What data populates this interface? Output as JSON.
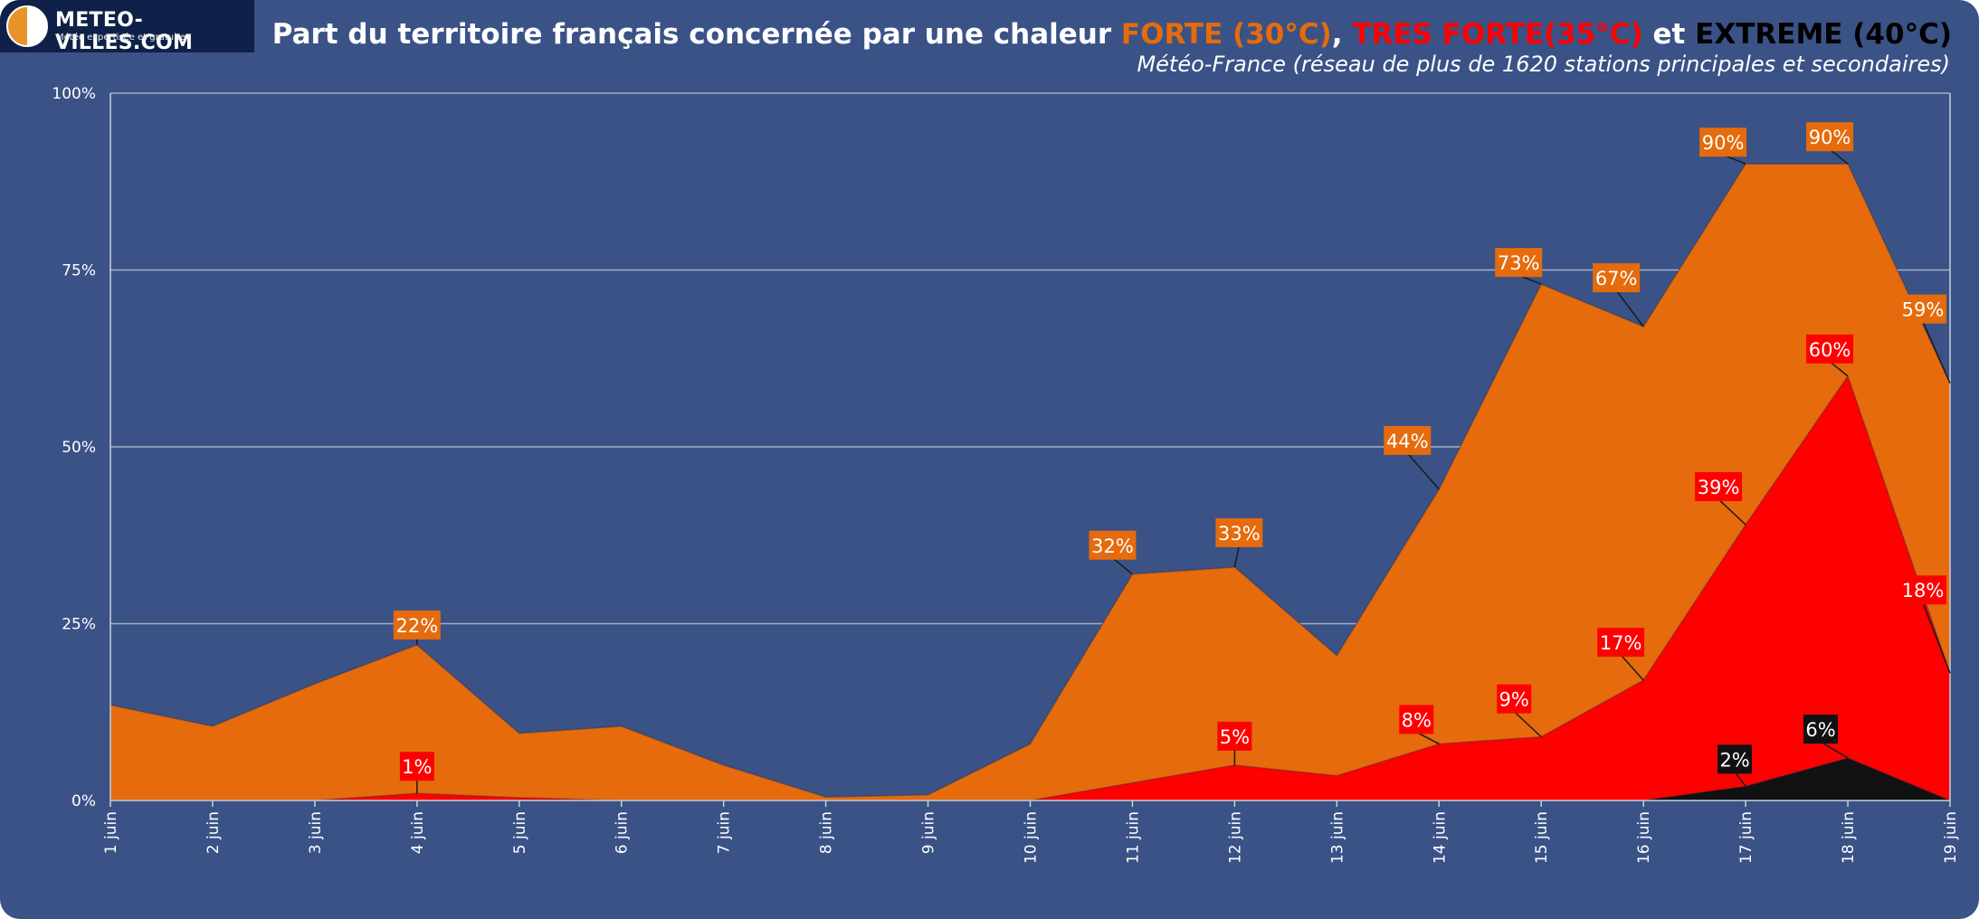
{
  "logo": {
    "name": "METEO-VILLES.COM",
    "tagline": "Météo expertisée et gratuite"
  },
  "title": {
    "prefix": "Part du territoire français concernée par une chaleur ",
    "forte": "FORTE (30°C)",
    "sep": ", ",
    "tres_forte": "TRES FORTE(35°C)",
    "and": " et ",
    "extreme": "EXTREME (40°C)"
  },
  "subtitle": "Météo-France (réseau de plus de 1620 stations principales et secondaires)",
  "colors": {
    "background": "#3a5286",
    "forte": "#e56b0c",
    "tres_forte": "#ff0000",
    "extreme": "#111111",
    "grid": "#a6afc4",
    "text": "#ffffff"
  },
  "chart_data": {
    "type": "area",
    "x": [
      "1 juin",
      "2 juin",
      "3 juin",
      "4 juin",
      "5 juin",
      "6 juin",
      "7 juin",
      "8 juin",
      "9 juin",
      "10 juin",
      "11 juin",
      "12 juin",
      "13 juin",
      "14 juin",
      "15 juin",
      "16 juin",
      "17 juin",
      "18 juin",
      "19 juin"
    ],
    "ylim": [
      0,
      100
    ],
    "yticks": [
      "0%",
      "25%",
      "50%",
      "75%",
      "100%"
    ],
    "grid": true,
    "series": [
      {
        "name": "FORTE (30°C)",
        "color": "#e56b0c",
        "values": [
          13.5,
          10.5,
          16.5,
          22,
          9.5,
          10.5,
          5,
          0.5,
          0.8,
          8,
          32,
          33,
          20.5,
          44,
          73,
          67,
          90,
          90,
          59
        ],
        "labels": {
          "3": "22%",
          "10": "32%",
          "11": "33%",
          "13": "44%",
          "14": "73%",
          "15": "67%",
          "16": "90%",
          "17": "90%",
          "18": "59%"
        }
      },
      {
        "name": "TRES FORTE(35°C)",
        "color": "#ff0000",
        "values": [
          0,
          0,
          0,
          1,
          0.4,
          0,
          0,
          0,
          0,
          0,
          2.5,
          5,
          3.5,
          8,
          9,
          17,
          39,
          60,
          18
        ],
        "labels": {
          "3": "1%",
          "11": "5%",
          "13": "8%",
          "14": "9%",
          "15": "17%",
          "16": "39%",
          "17": "60%",
          "18": "18%"
        }
      },
      {
        "name": "EXTREME (40°C)",
        "color": "#111111",
        "values": [
          0,
          0,
          0,
          0,
          0,
          0,
          0,
          0,
          0,
          0,
          0,
          0,
          0,
          0,
          0,
          0,
          2,
          6,
          0
        ],
        "labels": {
          "16": "2%",
          "17": "6%"
        }
      }
    ]
  }
}
